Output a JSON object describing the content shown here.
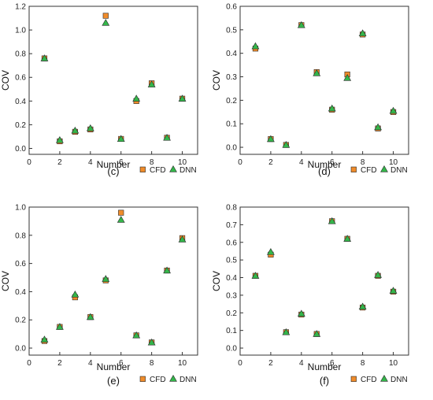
{
  "figure": {
    "marker_colors": {
      "cfd_fill": "#f08c2a",
      "dnn_fill": "#34b64a",
      "edge": "#2b2b2b"
    }
  },
  "chart_data": [
    {
      "type": "scatter",
      "panel_label": "(c)",
      "xlabel": "Number",
      "ylabel": "COV",
      "xlim": [
        0,
        11
      ],
      "ylim": [
        -0.05,
        1.2
      ],
      "xticks": [
        "0",
        "2",
        "4",
        "6",
        "8",
        "10"
      ],
      "yticks": [
        "0.0",
        "0.2",
        "0.4",
        "0.6",
        "0.8",
        "1.0",
        "1.2"
      ],
      "grid": false,
      "legend_position": "bottom-right",
      "x": [
        1,
        2,
        3,
        4,
        5,
        6,
        7,
        8,
        9,
        10
      ],
      "series": [
        {
          "name": "CFD",
          "marker": "square",
          "values": [
            0.76,
            0.06,
            0.14,
            0.16,
            1.12,
            0.08,
            0.4,
            0.55,
            0.09,
            0.42
          ]
        },
        {
          "name": "DNN",
          "marker": "triangle",
          "values": [
            0.76,
            0.07,
            0.15,
            0.17,
            1.06,
            0.08,
            0.42,
            0.54,
            0.09,
            0.42
          ]
        }
      ]
    },
    {
      "type": "scatter",
      "panel_label": "(d)",
      "xlabel": "Number",
      "ylabel": "COV",
      "xlim": [
        0,
        11
      ],
      "ylim": [
        -0.03,
        0.6
      ],
      "xticks": [
        "0",
        "2",
        "4",
        "6",
        "8",
        "10"
      ],
      "yticks": [
        "0.0",
        "0.1",
        "0.2",
        "0.3",
        "0.4",
        "0.5",
        "0.6"
      ],
      "grid": false,
      "legend_position": "bottom-right",
      "x": [
        1,
        2,
        3,
        4,
        5,
        6,
        7,
        8,
        9,
        10
      ],
      "series": [
        {
          "name": "CFD",
          "marker": "square",
          "values": [
            0.42,
            0.035,
            0.01,
            0.52,
            0.32,
            0.16,
            0.31,
            0.48,
            0.08,
            0.15
          ]
        },
        {
          "name": "DNN",
          "marker": "triangle",
          "values": [
            0.43,
            0.035,
            0.01,
            0.52,
            0.315,
            0.165,
            0.295,
            0.485,
            0.085,
            0.155
          ]
        }
      ]
    },
    {
      "type": "scatter",
      "panel_label": "(e)",
      "xlabel": "Number",
      "ylabel": "COV",
      "xlim": [
        0,
        11
      ],
      "ylim": [
        -0.05,
        1.0
      ],
      "xticks": [
        "0",
        "2",
        "4",
        "6",
        "8",
        "10"
      ],
      "yticks": [
        "0.0",
        "0.2",
        "0.4",
        "0.6",
        "0.8",
        "1.0"
      ],
      "grid": false,
      "legend_position": "bottom-right",
      "x": [
        1,
        2,
        3,
        4,
        5,
        6,
        7,
        8,
        9,
        10
      ],
      "series": [
        {
          "name": "CFD",
          "marker": "square",
          "values": [
            0.05,
            0.15,
            0.36,
            0.22,
            0.48,
            0.96,
            0.09,
            0.04,
            0.55,
            0.78
          ]
        },
        {
          "name": "DNN",
          "marker": "triangle",
          "values": [
            0.06,
            0.15,
            0.38,
            0.22,
            0.49,
            0.91,
            0.09,
            0.04,
            0.55,
            0.77
          ]
        }
      ]
    },
    {
      "type": "scatter",
      "panel_label": "(f)",
      "xlabel": "Number",
      "ylabel": "COV",
      "xlim": [
        0,
        11
      ],
      "ylim": [
        -0.04,
        0.8
      ],
      "xticks": [
        "0",
        "2",
        "4",
        "6",
        "8",
        "10"
      ],
      "yticks": [
        "0.0",
        "0.1",
        "0.2",
        "0.3",
        "0.4",
        "0.5",
        "0.6",
        "0.7",
        "0.8"
      ],
      "grid": false,
      "legend_position": "bottom-right",
      "x": [
        1,
        2,
        3,
        4,
        5,
        6,
        7,
        8,
        9,
        10
      ],
      "series": [
        {
          "name": "CFD",
          "marker": "square",
          "values": [
            0.41,
            0.53,
            0.09,
            0.19,
            0.08,
            0.72,
            0.62,
            0.23,
            0.41,
            0.32
          ]
        },
        {
          "name": "DNN",
          "marker": "triangle",
          "values": [
            0.41,
            0.545,
            0.09,
            0.195,
            0.08,
            0.72,
            0.62,
            0.235,
            0.415,
            0.325
          ]
        }
      ]
    }
  ]
}
